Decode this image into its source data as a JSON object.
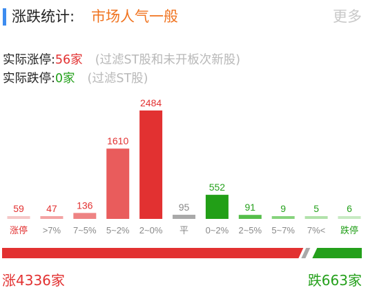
{
  "header": {
    "title": "涨跌统计:",
    "subtitle": "市场人气一般",
    "more_label": "更多"
  },
  "stats": {
    "up_label": "实际涨停:",
    "up_value": "56家",
    "up_note": "(过滤ST股和未开板次新股)",
    "down_label": "实际跌停:",
    "down_value": "0家",
    "down_note": "(过滤ST股)"
  },
  "chart_data": {
    "type": "bar",
    "categories": [
      "涨停",
      ">7%",
      "7~5%",
      "5~2%",
      "2~0%",
      "平",
      "0~2%",
      "2~5%",
      "5~7%",
      "7%<",
      "跌停"
    ],
    "values": [
      59,
      47,
      136,
      1610,
      2484,
      95,
      552,
      91,
      9,
      5,
      6
    ],
    "ylim": [
      0,
      2484
    ],
    "colors": [
      "#f5c7c7",
      "#f3a3a3",
      "#ee8383",
      "#e95c5c",
      "#e23131",
      "#a9a9a9",
      "#229f17",
      "#55be4a",
      "#86d37c",
      "#b1e2aa",
      "#c7eac2"
    ],
    "label_colors": [
      "#e23131",
      "#e23131",
      "#e23131",
      "#e23131",
      "#e23131",
      "#888888",
      "#24a01b",
      "#24a01b",
      "#24a01b",
      "#24a01b",
      "#24a01b"
    ],
    "category_label_colors": [
      "#e23131",
      "#888888",
      "#888888",
      "#888888",
      "#888888",
      "#888888",
      "#888888",
      "#888888",
      "#888888",
      "#888888",
      "#24a01b"
    ],
    "ratio": {
      "up": 4336,
      "down": 663
    },
    "ratio_colors": {
      "up": "#e23131",
      "down": "#24a01b",
      "flat": "#a9a9a9"
    },
    "grid": false,
    "legend": "none"
  },
  "footer": {
    "up_total": "涨4336家",
    "down_total": "跌663家"
  }
}
